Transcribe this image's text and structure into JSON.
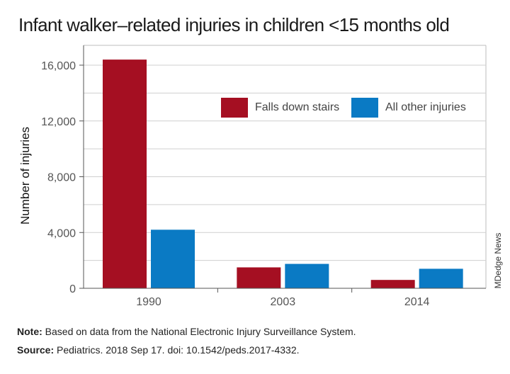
{
  "title": "Infant walker–related injuries in children <15 months old",
  "credit": "MDedge News",
  "note": {
    "label": "Note:",
    "text": " Based on data from the National Electronic Injury Surveillance System."
  },
  "source": {
    "label": "Source:",
    "text": " Pediatrics. 2018 Sep 17. doi: 10.1542/peds.2017-4332."
  },
  "chart_data": {
    "type": "bar",
    "title": "Infant walker–related injuries in children <15 months old",
    "xlabel": "",
    "ylabel": "Number of injuries",
    "categories": [
      "1990",
      "2003",
      "2014"
    ],
    "series": [
      {
        "name": "Falls down stairs",
        "color": "#a50f22",
        "values": [
          16400,
          1500,
          600
        ]
      },
      {
        "name": "All other injuries",
        "color": "#0a7ac4",
        "values": [
          4200,
          1750,
          1400
        ]
      }
    ],
    "ylim": [
      0,
      16800
    ],
    "yticks": [
      0,
      4000,
      8000,
      12000,
      16000
    ],
    "ytick_labels": [
      "0",
      "4,000",
      "8,000",
      "12,000",
      "16,000"
    ],
    "grid": true,
    "legend": "top-right"
  }
}
